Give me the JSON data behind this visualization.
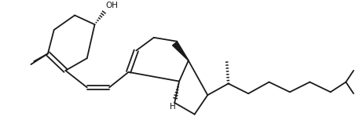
{
  "background": "#ffffff",
  "line_color": "#1a1a1a",
  "line_width": 1.3,
  "figsize": [
    4.62,
    1.72
  ],
  "dpi": 100
}
